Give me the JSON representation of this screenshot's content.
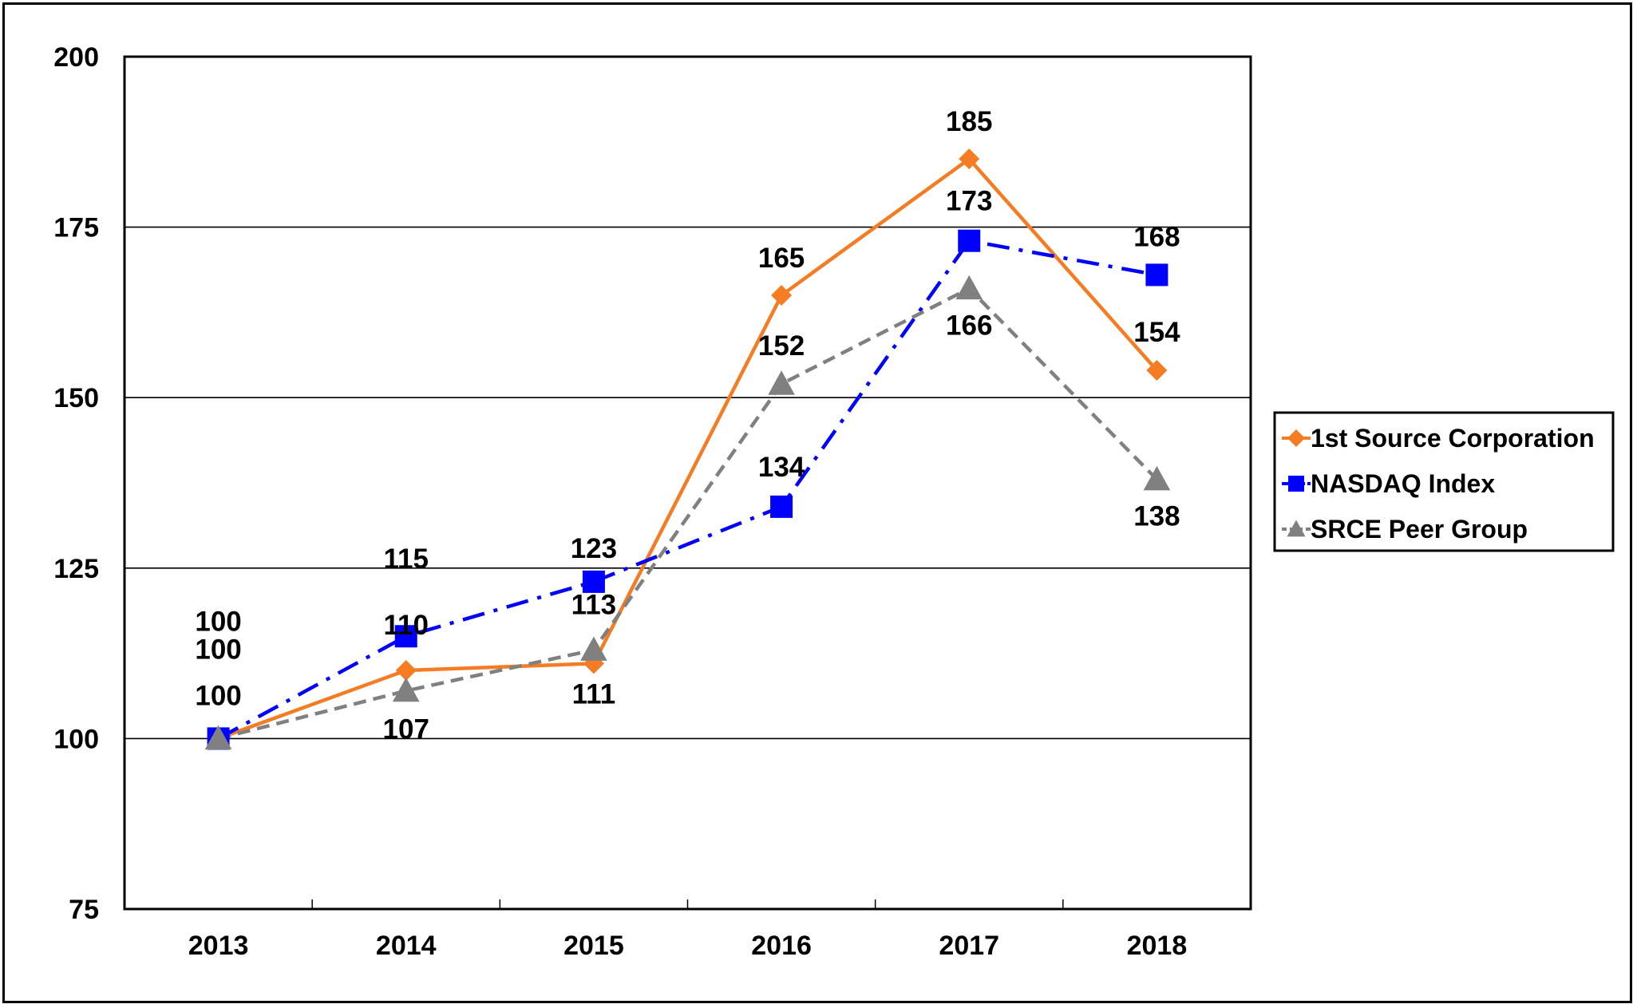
{
  "chart_data": {
    "type": "line",
    "title": "",
    "xlabel": "",
    "ylabel": "",
    "categories": [
      "2013",
      "2014",
      "2015",
      "2016",
      "2017",
      "2018"
    ],
    "ylim": [
      75,
      200
    ],
    "yticks": [
      "75",
      "100",
      "125",
      "150",
      "175",
      "200"
    ],
    "grid": "horizontal",
    "legend_position": "right",
    "series": [
      {
        "name": "1st Source Corporation",
        "values": [
          100,
          110,
          111,
          165,
          185,
          154
        ],
        "labels": [
          "100",
          "110",
          "111",
          "165",
          "185",
          "154"
        ],
        "color": "#f57c22",
        "marker": "diamond",
        "line_style": "solid"
      },
      {
        "name": "NASDAQ Index",
        "values": [
          100,
          115,
          123,
          134,
          173,
          168
        ],
        "labels": [
          "100",
          "115",
          "123",
          "134",
          "173",
          "168"
        ],
        "color": "#0000ff",
        "marker": "square",
        "line_style": "dash-dot"
      },
      {
        "name": "SRCE Peer Group",
        "values": [
          100,
          107,
          113,
          152,
          166,
          138
        ],
        "labels": [
          "100",
          "107",
          "113",
          "152",
          "166",
          "138"
        ],
        "color": "#808080",
        "marker": "triangle",
        "line_style": "dashed"
      }
    ]
  }
}
